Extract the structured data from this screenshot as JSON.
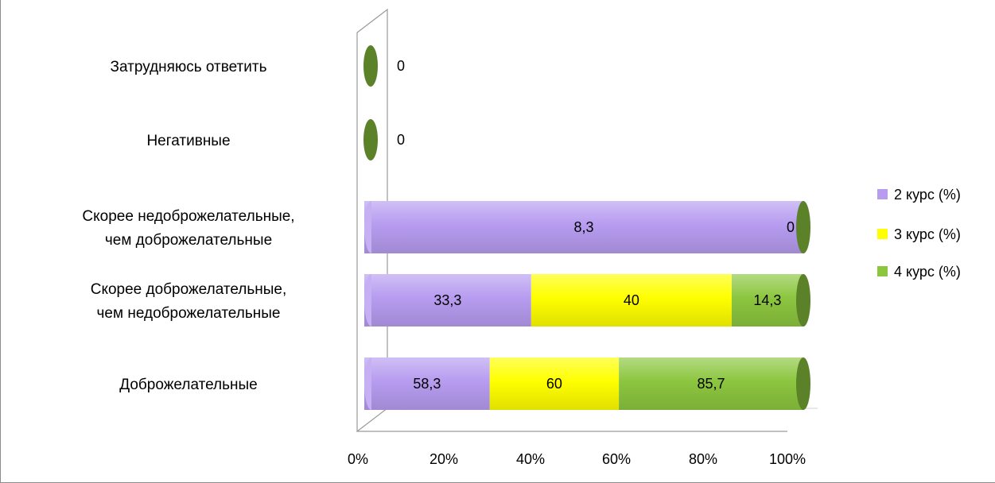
{
  "chart_data": {
    "type": "bar",
    "orientation": "horizontal",
    "stacked": "percent",
    "style": "3d-cylinder",
    "categories": [
      "Доброжелательные",
      "Скорее доброжелательные, чем недоброжелательные",
      "Скорее недоброжелательные, чем доброжелательные",
      "Негативные",
      "Затрудняюсь ответить"
    ],
    "series": [
      {
        "name": "2 курс (%)",
        "color": "#b79cf0",
        "values": [
          58.3,
          33.3,
          8.3,
          0,
          0
        ],
        "labels": [
          "58,3",
          "33,3",
          "8,3",
          "",
          ""
        ]
      },
      {
        "name": "3 курс (%)",
        "color": "#ffff00",
        "values": [
          60,
          40,
          0,
          0,
          0
        ],
        "labels": [
          "60",
          "40",
          "",
          "",
          ""
        ]
      },
      {
        "name": "4 курс (%)",
        "color": "#8cc63f",
        "values": [
          85.7,
          14.3,
          0,
          0,
          0
        ],
        "labels": [
          "85,7",
          "14,3",
          "0",
          "0",
          "0"
        ]
      }
    ],
    "xlim": [
      0,
      100
    ],
    "x_ticks": [
      "0%",
      "20%",
      "40%",
      "60%",
      "80%",
      "100%"
    ],
    "legend_position": "right",
    "grid": false
  }
}
